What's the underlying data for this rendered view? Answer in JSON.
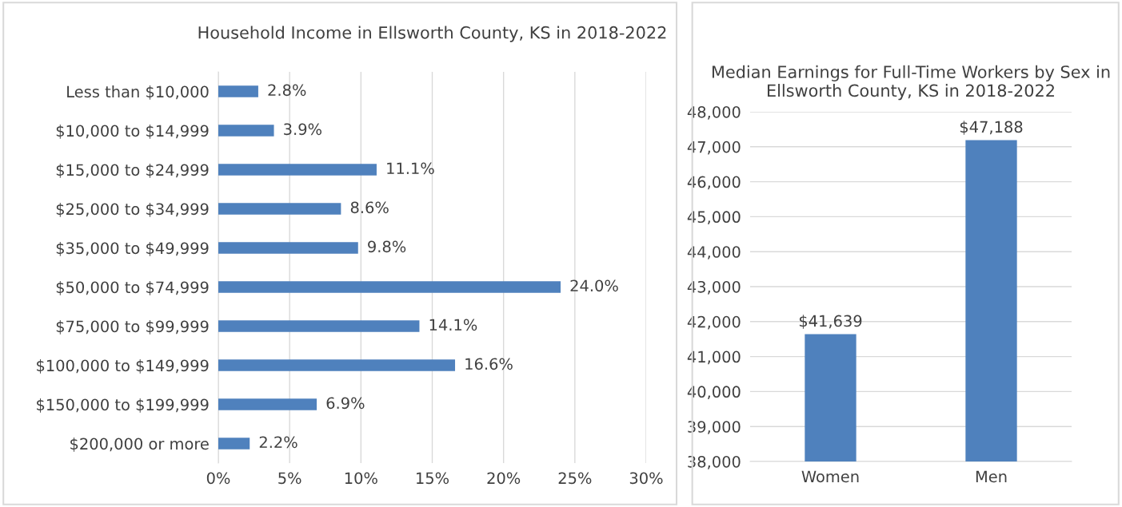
{
  "chart_data": [
    {
      "type": "bar",
      "orientation": "horizontal",
      "title": "Household Income in Ellsworth County, KS in 2018-2022",
      "categories": [
        "Less than $10,000",
        "$10,000 to $14,999",
        "$15,000 to $24,999",
        "$25,000 to $34,999",
        "$35,000 to $49,999",
        "$50,000 to $74,999",
        "$75,000 to $99,999",
        "$100,000 to $149,999",
        "$150,000 to $199,999",
        "$200,000 or more"
      ],
      "values": [
        2.8,
        3.9,
        11.1,
        8.6,
        9.8,
        24.0,
        14.1,
        16.6,
        6.9,
        2.2
      ],
      "value_labels": [
        "2.8%",
        "3.9%",
        "11.1%",
        "8.6%",
        "9.8%",
        "24.0%",
        "14.1%",
        "16.6%",
        "6.9%",
        "2.2%"
      ],
      "color": "#4f81bd",
      "xlim": [
        0,
        30
      ],
      "xticks": [
        {
          "value": 0,
          "label": "0%"
        },
        {
          "value": 5,
          "label": "5%"
        },
        {
          "value": 10,
          "label": "10%"
        },
        {
          "value": 15,
          "label": "15%"
        },
        {
          "value": 20,
          "label": "20%"
        },
        {
          "value": 25,
          "label": "25%"
        },
        {
          "value": 30,
          "label": "30%"
        }
      ],
      "grid": "x",
      "legend": false
    },
    {
      "type": "bar",
      "title": "Median Earnings for Full-Time Workers by Sex in Ellsworth County, KS in 2018-2022",
      "categories": [
        "Women",
        "Men"
      ],
      "values": [
        41639,
        47188
      ],
      "value_labels": [
        "$41,639",
        "$47,188"
      ],
      "color": "#4f81bd",
      "ylim": [
        38000,
        48000
      ],
      "yticks": [
        {
          "value": 38000,
          "label": "38,000"
        },
        {
          "value": 39000,
          "label": "39,000"
        },
        {
          "value": 40000,
          "label": "40,000"
        },
        {
          "value": 41000,
          "label": "41,000"
        },
        {
          "value": 42000,
          "label": "42,000"
        },
        {
          "value": 43000,
          "label": "43,000"
        },
        {
          "value": 44000,
          "label": "44,000"
        },
        {
          "value": 45000,
          "label": "45,000"
        },
        {
          "value": 46000,
          "label": "46,000"
        },
        {
          "value": 47000,
          "label": "47,000"
        },
        {
          "value": 48000,
          "label": "48,000"
        }
      ],
      "grid": "y",
      "legend": false
    }
  ]
}
